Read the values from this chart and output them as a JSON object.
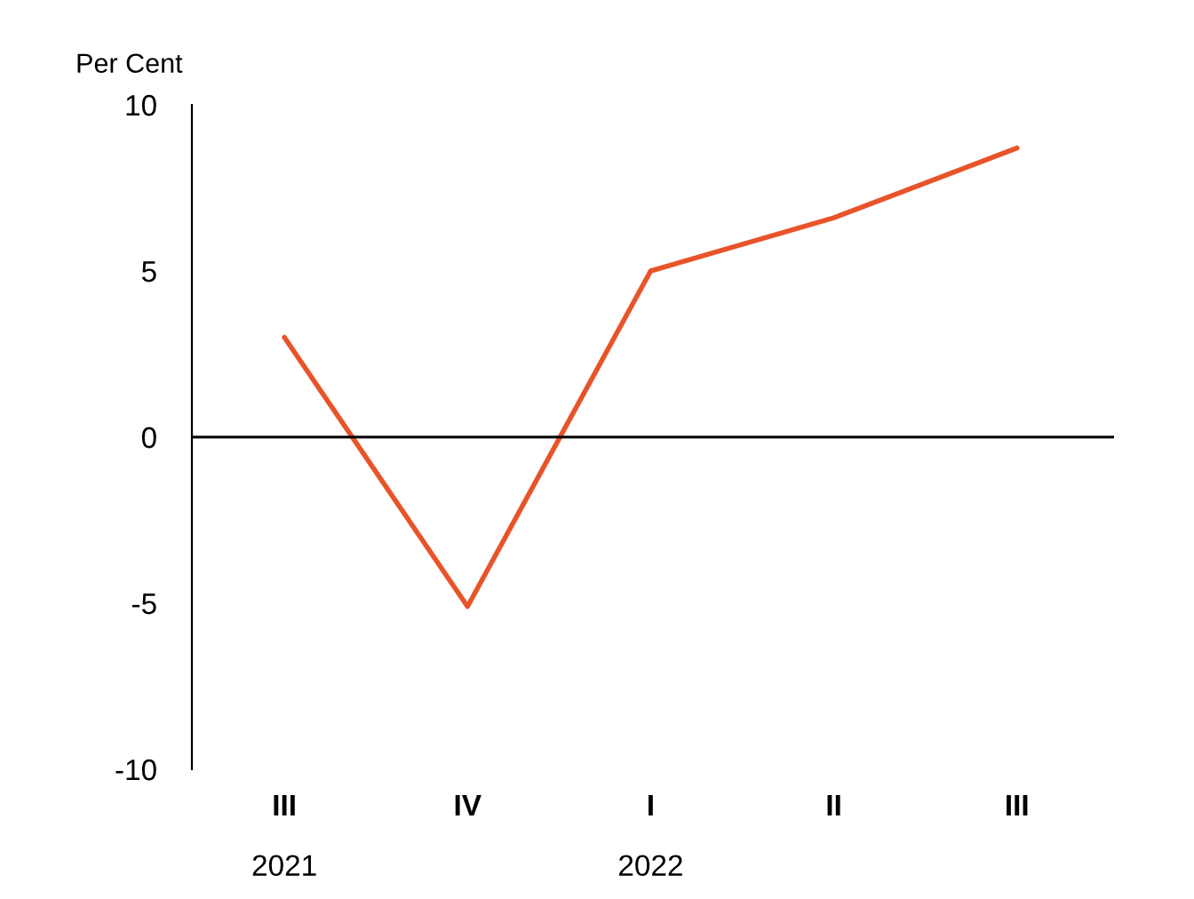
{
  "chart_data": {
    "type": "line",
    "ylabel": "Per Cent",
    "categories": [
      "III\n2021",
      "IV",
      "I\n2022",
      "II",
      "III"
    ],
    "series": [
      {
        "color": "#e8542a",
        "values": [
          3.0,
          -5.1,
          5.0,
          6.6,
          8.7
        ]
      }
    ],
    "ylim": [
      -10,
      10
    ],
    "yticks": [
      -10,
      -5,
      0,
      5,
      10
    ],
    "ref_lines": [
      {
        "axis": "y",
        "value": 0,
        "color": "#000000"
      }
    ],
    "grid": false,
    "legend": false,
    "marker": "none",
    "line_style": "solid"
  }
}
